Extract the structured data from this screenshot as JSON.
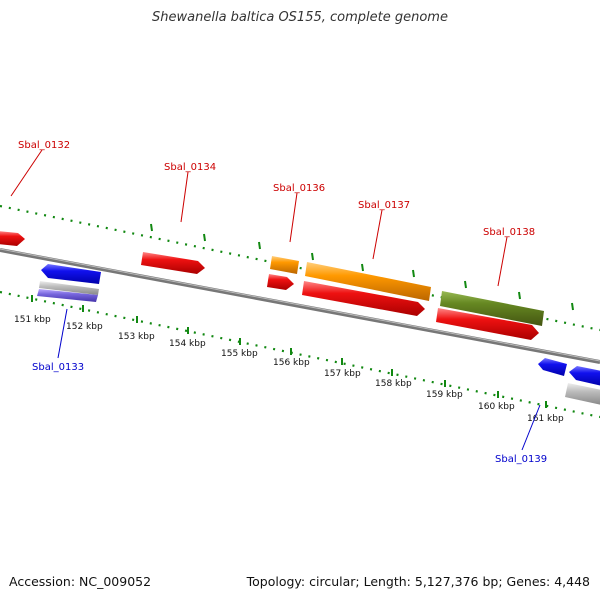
{
  "title": "Shewanella baltica OS155, complete genome",
  "footer": {
    "accession": "Accession: NC_009052",
    "summary": "Topology: circular; Length: 5,127,376 bp; Genes: 4,448"
  },
  "colors": {
    "red": "#ee1111",
    "orange": "#ff9900",
    "olive": "#668822",
    "blue": "#1111ee",
    "grey": "#b8b8b8",
    "purple": "#7766dd",
    "ticks": "#118811",
    "backbone": "#777777",
    "label_forward": "#cc0000",
    "label_reverse": "#0000cc"
  },
  "scale_labels": [
    "151 kbp",
    "152 kbp",
    "153 kbp",
    "154 kbp",
    "155 kbp",
    "156 kbp",
    "157 kbp",
    "158 kbp",
    "159 kbp",
    "160 kbp",
    "161 kbp"
  ],
  "gene_labels": [
    {
      "text": "Sbal_0132",
      "strand": "forward"
    },
    {
      "text": "Sbal_0133",
      "strand": "reverse"
    },
    {
      "text": "Sbal_0134",
      "strand": "forward"
    },
    {
      "text": "Sbal_0136",
      "strand": "forward"
    },
    {
      "text": "Sbal_0137",
      "strand": "forward"
    },
    {
      "text": "Sbal_0138",
      "strand": "forward"
    },
    {
      "text": "Sbal_0139",
      "strand": "reverse"
    }
  ]
}
